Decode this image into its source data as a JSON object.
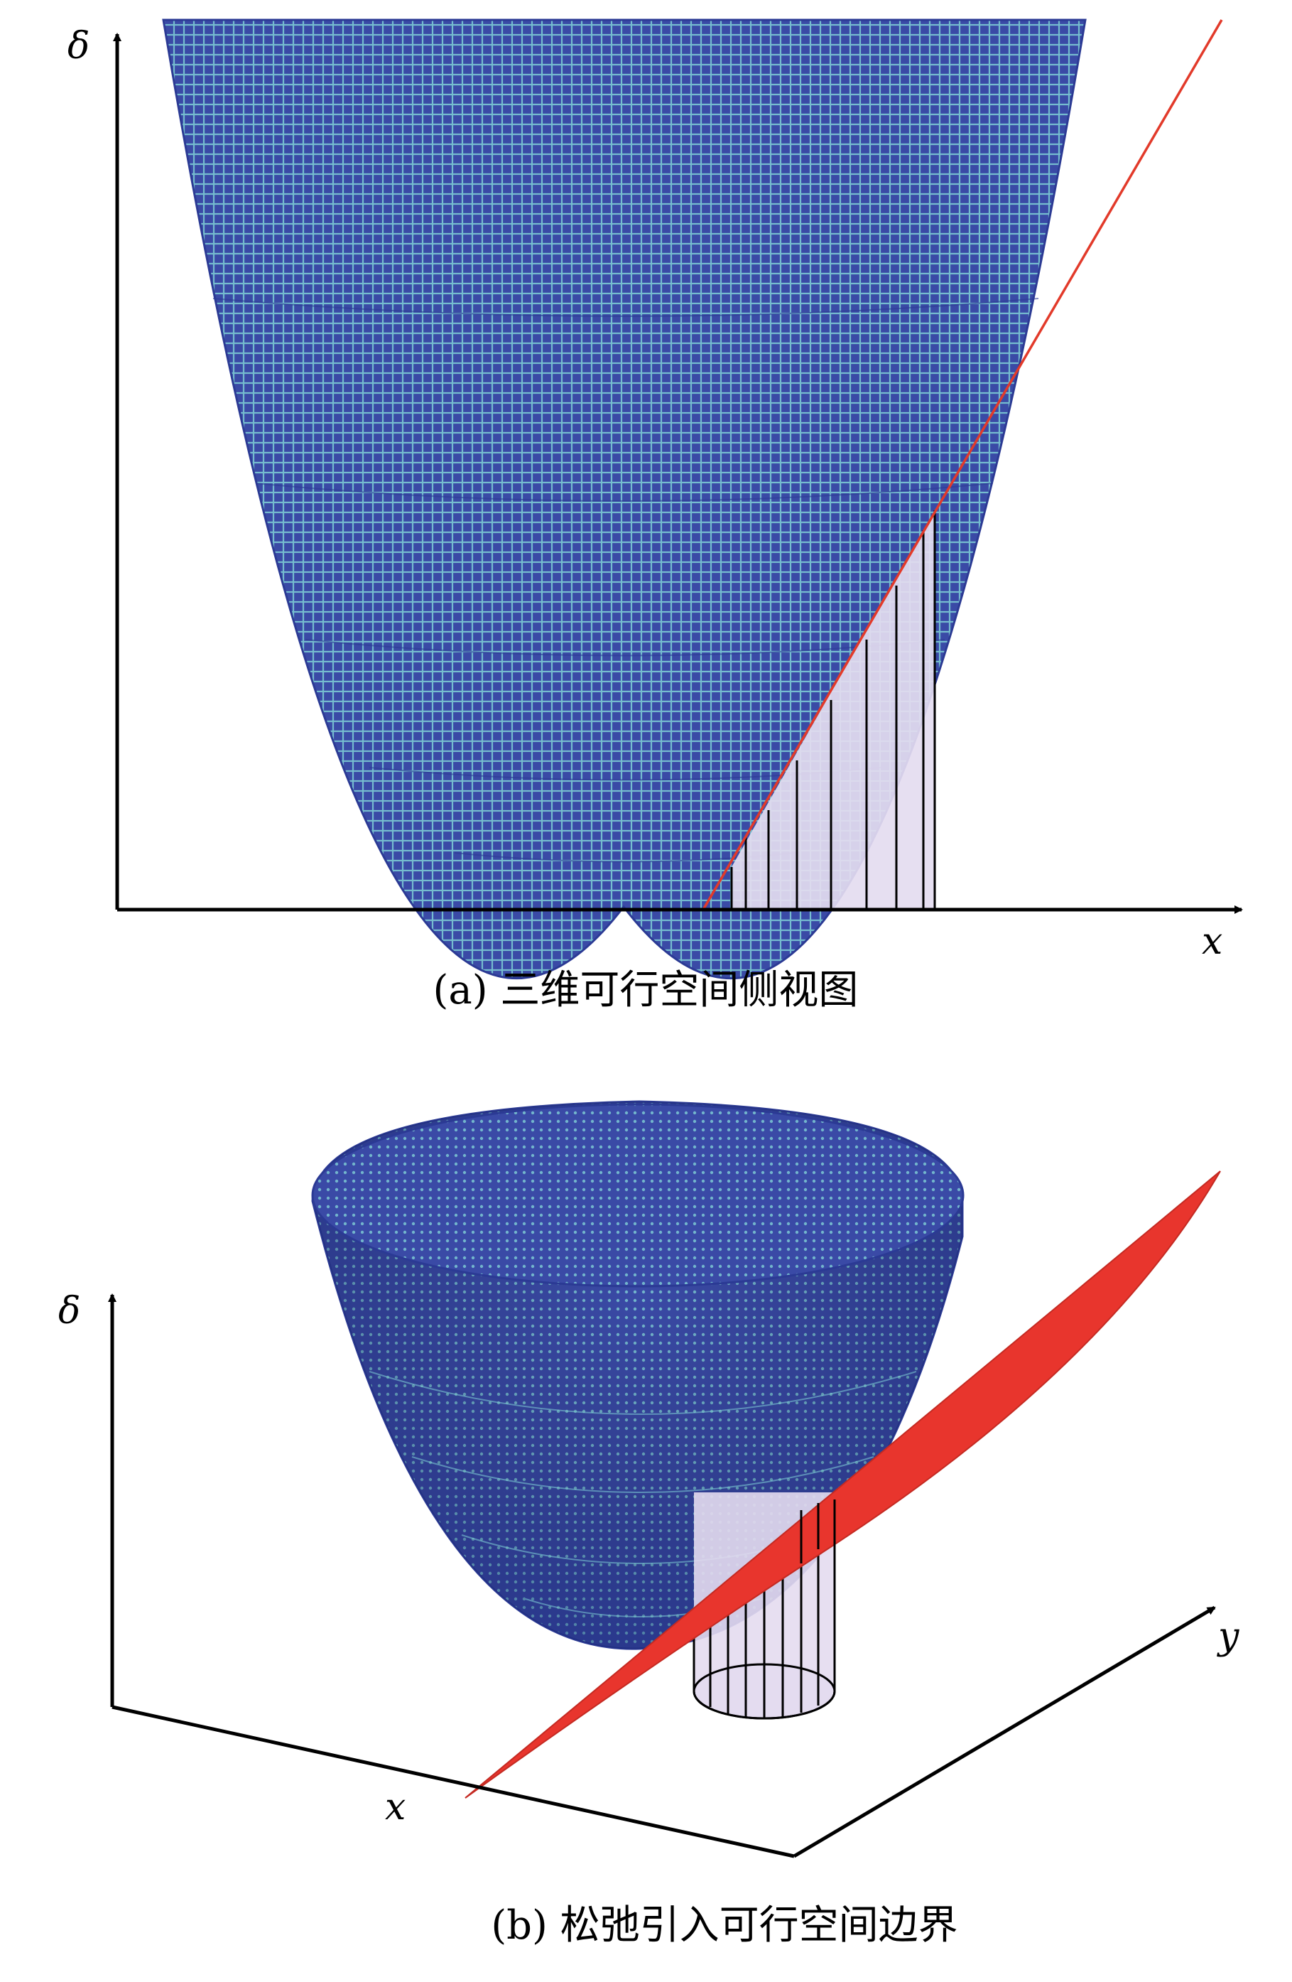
{
  "panel_a": {
    "caption": "(a) 三维可行空间侧视图",
    "axis_x_label": "x",
    "axis_y_label": "δ"
  },
  "panel_b": {
    "caption": "(b) 松弛引入可行空间边界",
    "axis_x_label": "x",
    "axis_y_label": "y",
    "axis_z_label": "δ"
  },
  "colors": {
    "surface_blue": "#3a4aa6",
    "mesh_light": "#7fd0d6",
    "plane_red": "#e8352d",
    "line_red": "#e23a2a",
    "region_fill": "#e4dcf0",
    "axis_black": "#000000"
  }
}
